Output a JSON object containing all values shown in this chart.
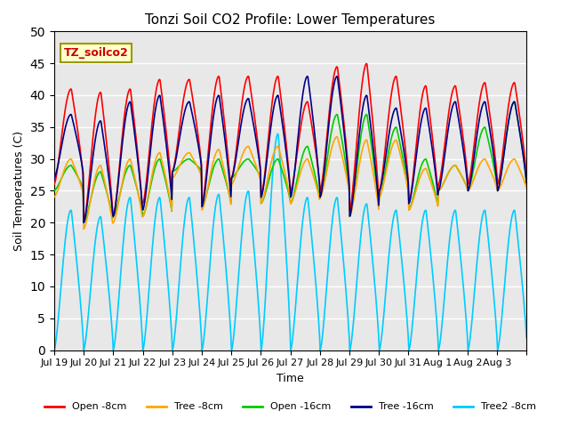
{
  "title": "Tonzi Soil CO2 Profile: Lower Temperatures",
  "xlabel": "Time",
  "ylabel": "Soil Temperatures (C)",
  "ylim": [
    0,
    50
  ],
  "n_days": 16,
  "annotation": "TZ_soilco2",
  "bg_color": "#e8e8e8",
  "lines": {
    "open_8cm": {
      "label": "Open -8cm",
      "color": "#ff0000"
    },
    "tree_8cm": {
      "label": "Tree -8cm",
      "color": "#ffa500"
    },
    "open_16cm": {
      "label": "Open -16cm",
      "color": "#00cc00"
    },
    "tree_16cm": {
      "label": "Tree -16cm",
      "color": "#00008b"
    },
    "tree2_8cm": {
      "label": "Tree2 -8cm",
      "color": "#00ccff"
    }
  },
  "xtick_labels": [
    "Jul 19",
    "Jul 20",
    "Jul 21",
    "Jul 22",
    "Jul 23",
    "Jul 24",
    "Jul 25",
    "Jul 26",
    "Jul 27",
    "Jul 28",
    "Jul 29",
    "Jul 30",
    "Jul 31",
    "Aug 1",
    "Aug 2",
    "Aug 3",
    ""
  ],
  "daily_peaks_open8": [
    41,
    40.5,
    41,
    42.5,
    42.5,
    43,
    43,
    43,
    39,
    44.5,
    45,
    43,
    41.5,
    41.5,
    42,
    42
  ],
  "daily_peaks_tree8": [
    30,
    29,
    30,
    31,
    31,
    31.5,
    32,
    32,
    30,
    33.5,
    33,
    33,
    28.5,
    29,
    30,
    30
  ],
  "daily_peaks_open16": [
    29,
    28,
    29,
    30,
    30,
    30,
    30,
    30,
    32,
    37,
    37,
    35,
    30,
    29,
    35,
    39
  ],
  "daily_peaks_tree16": [
    37,
    36,
    39,
    40,
    39,
    40,
    39.5,
    40,
    43,
    43,
    40,
    38,
    38,
    39,
    39,
    39
  ],
  "daily_peaks_tree2": [
    22,
    21,
    24,
    24,
    24,
    24.5,
    25,
    34,
    24,
    24,
    23,
    22,
    22,
    22,
    22,
    22
  ],
  "daily_mins_open8": [
    26,
    20,
    21,
    23,
    28,
    23,
    27,
    24,
    25,
    25,
    22,
    25,
    23,
    26,
    26,
    26
  ],
  "daily_mins_tree8": [
    24,
    19,
    20,
    21,
    27,
    22,
    26,
    23,
    23,
    24,
    21,
    24,
    22,
    25,
    25,
    25
  ],
  "daily_mins_open16": [
    25,
    20,
    21,
    21,
    28,
    22.5,
    27,
    23,
    23,
    24,
    21,
    24,
    22,
    25,
    25,
    25
  ],
  "daily_mins_tree16": [
    27,
    20,
    21,
    22,
    28,
    22.5,
    27,
    24,
    24,
    24,
    21,
    25,
    23,
    25,
    25,
    25
  ],
  "daily_mins_tree2": [
    0,
    0,
    0,
    0,
    0,
    0,
    0,
    0,
    0,
    0,
    0,
    0,
    0,
    0,
    0,
    0
  ]
}
